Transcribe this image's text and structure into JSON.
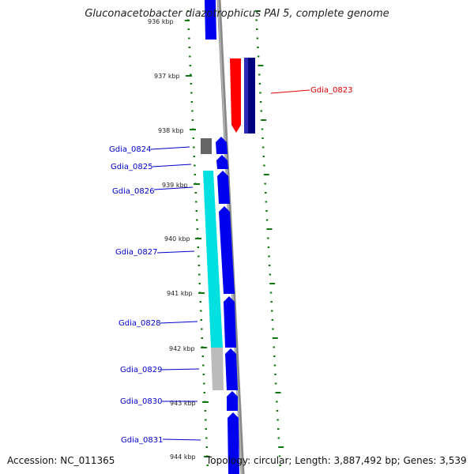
{
  "title": "Gluconacetobacter diazotrophicus PAI 5, complete genome",
  "footer": {
    "accession": "Accession: NC_011365",
    "summary": "Topology: circular; Length: 3,887,492 bp; Genes: 3,539"
  },
  "colors": {
    "backbone": "#888888",
    "ruler": "#117711",
    "forward_gene": "#0000ee",
    "reverse_gene": "#000080",
    "highlight_gene": "#ff0000",
    "cyan_feature": "#00e5e5",
    "grey_feature": "#bbbbbb",
    "dark_grey_feature": "#666666",
    "label_blue": "#0000cc",
    "label_red": "#dd0000"
  },
  "ruler": {
    "ticks": [
      "936 kbp",
      "937 kbp",
      "938 kbp",
      "939 kbp",
      "940 kbp",
      "941 kbp",
      "942 kbp",
      "943 kbp",
      "944 kbp"
    ]
  },
  "genes": [
    {
      "label": "Gdia_0823",
      "color": "label_red"
    },
    {
      "label": "Gdia_0824",
      "color": "label_blue"
    },
    {
      "label": "Gdia_0825",
      "color": "label_blue"
    },
    {
      "label": "Gdia_0826",
      "color": "label_blue"
    },
    {
      "label": "Gdia_0827",
      "color": "label_blue"
    },
    {
      "label": "Gdia_0828",
      "color": "label_blue"
    },
    {
      "label": "Gdia_0829",
      "color": "label_blue"
    },
    {
      "label": "Gdia_0830",
      "color": "label_blue"
    },
    {
      "label": "Gdia_0831",
      "color": "label_blue"
    }
  ]
}
